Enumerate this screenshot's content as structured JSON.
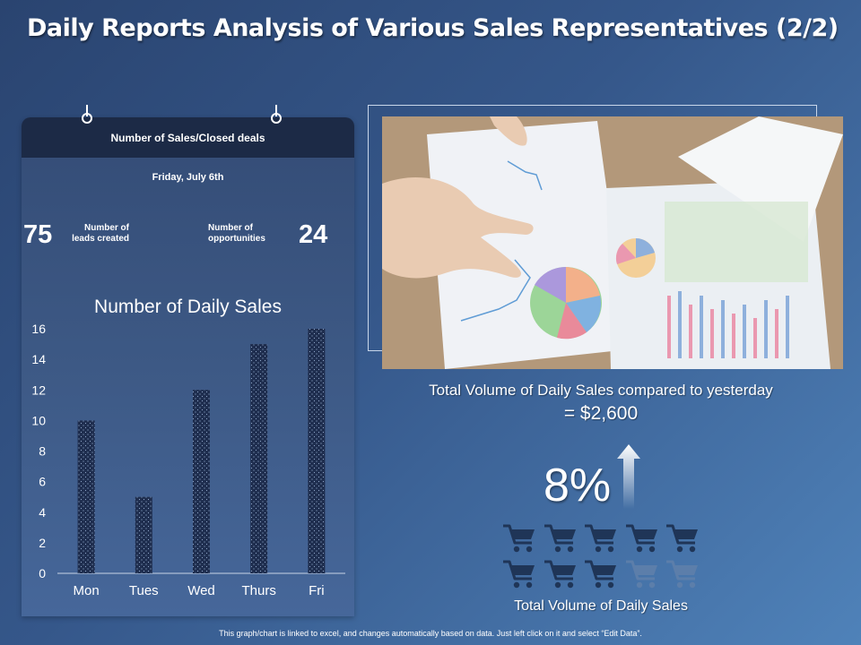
{
  "slide": {
    "title": "Daily Reports Analysis of Various Sales Representatives (2/2)",
    "footer_note": "This graph/chart is linked to excel, and changes automatically based on data. Just left click on it and select “Edit Data”."
  },
  "panel": {
    "header": "Number of Sales/Closed deals",
    "date": "Friday,  July 6th",
    "leads": {
      "value": "75",
      "label_line1": "Number of",
      "label_line2": "leads created"
    },
    "opportunities": {
      "value": "24",
      "label_line1": "Number of",
      "label_line2": "opportunities"
    },
    "chart_title": "Number of Daily Sales"
  },
  "chart_data": {
    "type": "bar",
    "title": "Number of Daily Sales",
    "categories": [
      "Mon",
      "Tues",
      "Wed",
      "Thurs",
      "Fri"
    ],
    "values": [
      10,
      5,
      12,
      15,
      16
    ],
    "yticks": [
      "0",
      "2",
      "4",
      "6",
      "8",
      "10",
      "12",
      "14",
      "16"
    ],
    "ylim": [
      0,
      16
    ],
    "grid": false,
    "bar_color": "#1e2d4e"
  },
  "right": {
    "photo_icon": "business-meeting-charts-photo",
    "compare_text": "Total Volume of Daily Sales compared to yesterday",
    "compare_value": "= $2,600",
    "percent_change": "8%",
    "arrow_icon": "up-arrow-icon",
    "cart_icon": "shopping-cart-icon",
    "carts_filled": 8,
    "carts_total": 10,
    "volume_label": "Total Volume of Daily Sales"
  },
  "colors": {
    "cart_filled": "#1f3557",
    "cart_empty": "#5c7eaa",
    "header_bg": "#1c2a46"
  }
}
